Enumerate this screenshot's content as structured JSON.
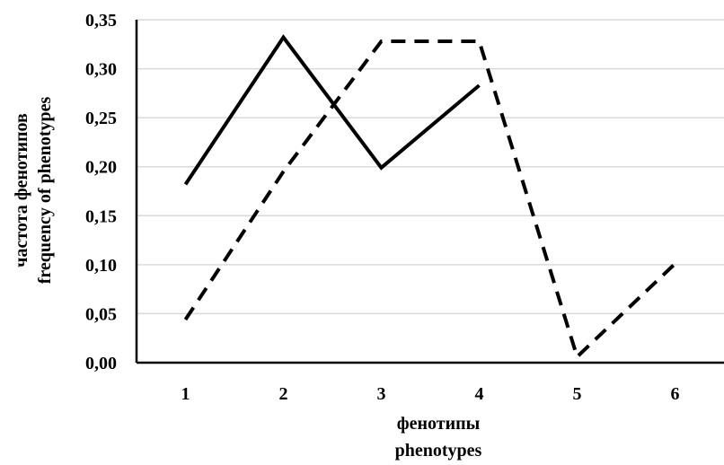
{
  "chart_data": {
    "type": "line",
    "x": [
      "1",
      "2",
      "3",
      "4",
      "5",
      "6"
    ],
    "ylim": [
      0,
      0.35
    ],
    "yticks": [
      "0,00",
      "0,05",
      "0,10",
      "0,15",
      "0,20",
      "0,25",
      "0,30",
      "0,35"
    ],
    "ylabel_lines": [
      "частота фенотипов",
      "frequency of phenotypes"
    ],
    "xlabel_lines": [
      "фенотипы",
      "phenotypes"
    ],
    "grid": "horizontal",
    "legend": "none",
    "series": [
      {
        "style": "solid",
        "color": "#000000",
        "values": [
          0.182,
          0.332,
          0.199,
          0.283,
          null,
          null
        ]
      },
      {
        "style": "dashed",
        "color": "#000000",
        "values": [
          0.044,
          0.195,
          0.328,
          0.328,
          0.006,
          0.101
        ]
      }
    ]
  }
}
